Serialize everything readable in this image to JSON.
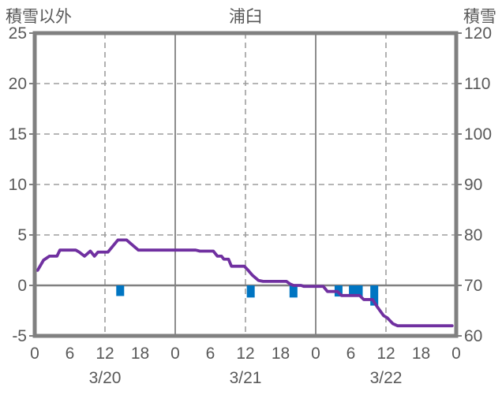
{
  "header": {
    "left_axis_title": "積雪以外",
    "station_title": "浦臼",
    "right_axis_title": "積雪"
  },
  "chart_data": {
    "type": "line+bar",
    "title": "浦臼",
    "left_axis": {
      "title": "積雪以外",
      "ticks": [
        25,
        20,
        15,
        10,
        5,
        0,
        -5
      ],
      "range": [
        -5,
        25
      ]
    },
    "right_axis": {
      "title": "積雪",
      "ticks": [
        120,
        110,
        100,
        90,
        80,
        70,
        60
      ],
      "range": [
        60,
        120
      ]
    },
    "x_axis": {
      "range_hours": [
        0,
        72
      ],
      "tick_step_hours": 6,
      "hour_labels": [
        "0",
        "6",
        "12",
        "18",
        "0",
        "6",
        "12",
        "18",
        "0",
        "6",
        "12",
        "18",
        "0"
      ],
      "date_labels": [
        "3/20",
        "3/21",
        "3/22"
      ],
      "date_label_hours": [
        12,
        36,
        60
      ]
    },
    "grid": {
      "v_dashed_hours": [
        12,
        36,
        60
      ],
      "v_solid_hours": [
        24,
        48
      ],
      "h_dashed_values": [
        20,
        15,
        10,
        5
      ],
      "zero_line_value": 0
    },
    "colors": {
      "line": "#7030a0",
      "bar": "#0075c2",
      "axis": "#808080",
      "grid": "#9e9e9e",
      "text": "#595959"
    },
    "line_series": {
      "name": "snow-depth-line",
      "points_hour_value": [
        [
          0,
          1.5
        ],
        [
          0.5,
          1.5
        ],
        [
          1.5,
          2.5
        ],
        [
          2.5,
          2.9
        ],
        [
          3.8,
          2.9
        ],
        [
          4.3,
          3.5
        ],
        [
          7,
          3.5
        ],
        [
          7.6,
          3.3
        ],
        [
          8.5,
          2.9
        ],
        [
          9.5,
          3.4
        ],
        [
          10.2,
          2.9
        ],
        [
          10.8,
          3.3
        ],
        [
          12.5,
          3.3
        ],
        [
          14.2,
          4.5
        ],
        [
          15.7,
          4.5
        ],
        [
          16.5,
          4.1
        ],
        [
          17.7,
          3.5
        ],
        [
          27.5,
          3.5
        ],
        [
          28.2,
          3.4
        ],
        [
          30.5,
          3.4
        ],
        [
          31.2,
          2.9
        ],
        [
          31.9,
          2.9
        ],
        [
          32.3,
          2.6
        ],
        [
          33.1,
          2.6
        ],
        [
          33.6,
          1.9
        ],
        [
          35.8,
          1.9
        ],
        [
          36.3,
          1.6
        ],
        [
          37.2,
          1.0
        ],
        [
          38.2,
          0.5
        ],
        [
          39,
          0.4
        ],
        [
          43,
          0.4
        ],
        [
          43.6,
          0.15
        ],
        [
          44.2,
          0
        ],
        [
          45.5,
          0
        ],
        [
          46,
          -0.1
        ],
        [
          49.3,
          -0.1
        ],
        [
          50,
          -0.6
        ],
        [
          51.7,
          -0.6
        ],
        [
          52.4,
          -1.0
        ],
        [
          55.5,
          -1.0
        ],
        [
          56.2,
          -1.4
        ],
        [
          57.7,
          -1.4
        ],
        [
          58.6,
          -2.2
        ],
        [
          59.6,
          -3.0
        ],
        [
          60.2,
          -3.2
        ],
        [
          61.2,
          -3.8
        ],
        [
          62,
          -4.0
        ],
        [
          71.3,
          -4.0
        ]
      ]
    },
    "bar_series": {
      "name": "snow-change-bars",
      "bar_width_hours": 1.35,
      "points_hour_value": [
        [
          14.6,
          -1.05
        ],
        [
          36.9,
          -1.2
        ],
        [
          44.2,
          -1.2
        ],
        [
          51.9,
          -1.1
        ],
        [
          54.35,
          -1.1
        ],
        [
          55.35,
          -1.1
        ],
        [
          58.0,
          -2.0
        ]
      ]
    }
  }
}
